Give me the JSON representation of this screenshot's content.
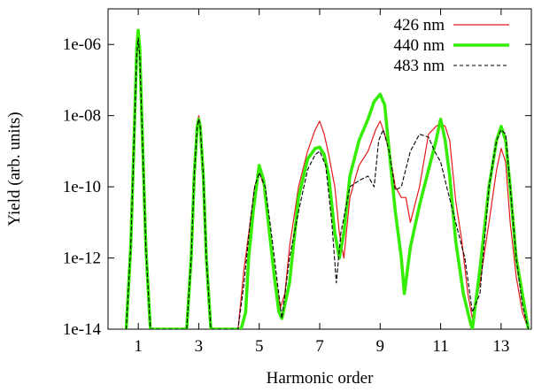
{
  "chart_data": {
    "type": "line",
    "title": "",
    "xlabel": "Harmonic order",
    "ylabel": "Yield (arb. units)",
    "xlim": [
      0.0,
      14.0
    ],
    "ylim": [
      1e-14,
      1e-05
    ],
    "y_scale": "log",
    "grid": false,
    "legend_position": "top-right",
    "x_ticks": [
      1,
      3,
      5,
      7,
      9,
      11,
      13
    ],
    "x_tick_labels": [
      "1",
      "3",
      "5",
      "7",
      "9",
      "11",
      "13"
    ],
    "y_ticks": [
      1e-14,
      1e-12,
      1e-10,
      1e-08,
      1e-06
    ],
    "y_tick_labels": [
      "1e-14",
      "1e-12",
      "1e-10",
      "1e-08",
      "1e-06"
    ],
    "series": [
      {
        "name": "426 nm",
        "color": "#e41a1c",
        "style": "solid-thin",
        "x": [
          0.6,
          0.75,
          0.85,
          0.95,
          1.0,
          1.05,
          1.15,
          1.25,
          1.4,
          2.6,
          2.75,
          2.85,
          2.95,
          3.0,
          3.05,
          3.15,
          3.25,
          3.4,
          4.3,
          4.5,
          4.7,
          4.85,
          5.0,
          5.15,
          5.3,
          5.5,
          5.7,
          5.85,
          6.0,
          6.3,
          6.6,
          6.85,
          7.0,
          7.15,
          7.3,
          7.5,
          7.65,
          7.8,
          8.0,
          8.3,
          8.6,
          8.85,
          9.0,
          9.15,
          9.3,
          9.5,
          9.7,
          9.85,
          10.0,
          10.3,
          10.6,
          10.85,
          11.0,
          11.15,
          11.3,
          11.5,
          11.7,
          11.9,
          12.05,
          12.3,
          12.6,
          12.85,
          13.0,
          13.15,
          13.3,
          13.5,
          13.7,
          13.9
        ],
        "y": [
          1e-14,
          2e-12,
          1e-09,
          5e-07,
          1.2e-06,
          5e-07,
          1e-09,
          2e-12,
          1e-14,
          1e-14,
          1e-12,
          2e-10,
          6e-09,
          1e-08,
          6e-09,
          2e-10,
          1e-12,
          1e-14,
          1e-14,
          5e-13,
          1e-11,
          1e-10,
          3e-10,
          1e-10,
          1e-11,
          4e-13,
          4e-14,
          1e-13,
          2e-12,
          1e-10,
          1e-09,
          4e-09,
          7e-09,
          3e-09,
          8e-10,
          1e-10,
          5e-12,
          1e-12,
          5e-11,
          4e-10,
          1e-09,
          4e-09,
          7e-09,
          3e-09,
          1e-09,
          1e-10,
          5e-11,
          5e-11,
          1e-11,
          1e-10,
          3e-09,
          5e-09,
          6e-09,
          5e-09,
          2e-09,
          4e-11,
          3e-12,
          1e-13,
          2e-14,
          2e-13,
          1e-11,
          3e-10,
          1.2e-09,
          5e-10,
          1e-11,
          3e-13,
          3e-14,
          1e-14
        ]
      },
      {
        "name": "440 nm",
        "color": "#33ee00",
        "style": "solid-thick",
        "x": [
          0.6,
          0.75,
          0.85,
          0.95,
          1.0,
          1.05,
          1.15,
          1.25,
          1.4,
          2.6,
          2.75,
          2.85,
          2.95,
          3.0,
          3.05,
          3.15,
          3.25,
          3.4,
          4.4,
          4.55,
          4.65,
          4.8,
          5.0,
          5.15,
          5.3,
          5.5,
          5.65,
          5.75,
          6.0,
          6.3,
          6.6,
          6.85,
          7.0,
          7.15,
          7.3,
          7.5,
          7.65,
          7.8,
          8.0,
          8.3,
          8.6,
          8.8,
          9.0,
          9.15,
          9.3,
          9.5,
          9.7,
          9.8,
          10.0,
          10.3,
          10.6,
          10.85,
          11.0,
          11.15,
          11.3,
          11.5,
          11.75,
          11.95,
          12.05,
          12.3,
          12.6,
          12.85,
          13.0,
          13.15,
          13.3,
          13.5,
          13.7,
          13.9
        ],
        "y": [
          1e-14,
          2e-12,
          1e-09,
          8e-07,
          2.5e-06,
          8e-07,
          1e-09,
          2e-12,
          1e-14,
          1e-14,
          1e-12,
          2e-10,
          5e-09,
          8e-09,
          5e-09,
          2e-10,
          1e-12,
          1e-14,
          1e-14,
          3e-14,
          1e-12,
          2e-11,
          4e-10,
          1.5e-10,
          1e-11,
          3e-13,
          3e-14,
          2e-14,
          2e-13,
          5e-11,
          6e-10,
          1.2e-09,
          1.3e-09,
          8e-10,
          2e-10,
          5e-12,
          1e-12,
          5e-12,
          2e-10,
          2e-09,
          8e-09,
          2.5e-08,
          4e-08,
          2e-08,
          1e-09,
          2e-11,
          1e-12,
          1e-13,
          2e-12,
          3e-11,
          3e-10,
          2e-09,
          8e-09,
          2e-09,
          2e-10,
          3e-12,
          1e-13,
          2e-14,
          1e-14,
          5e-13,
          1e-10,
          2e-09,
          5e-09,
          2e-09,
          1e-10,
          1e-12,
          1e-13,
          1e-14
        ]
      },
      {
        "name": "483 nm",
        "color": "#000000",
        "style": "dashed",
        "x": [
          0.6,
          0.75,
          0.85,
          0.95,
          1.0,
          1.05,
          1.15,
          1.25,
          1.4,
          2.6,
          2.75,
          2.85,
          2.95,
          3.0,
          3.05,
          3.15,
          3.25,
          3.4,
          4.3,
          4.5,
          4.7,
          4.85,
          5.0,
          5.2,
          5.4,
          5.6,
          5.75,
          6.0,
          6.3,
          6.6,
          6.85,
          7.0,
          7.2,
          7.4,
          7.55,
          7.7,
          8.0,
          8.3,
          8.6,
          8.8,
          8.95,
          9.1,
          9.3,
          9.5,
          9.7,
          10.0,
          10.3,
          10.6,
          10.8,
          11.0,
          11.2,
          11.5,
          11.8,
          12.05,
          12.3,
          12.6,
          12.85,
          13.0,
          13.15,
          13.3,
          13.5,
          13.7,
          13.9
        ],
        "y": [
          1e-14,
          2e-12,
          1e-09,
          5e-07,
          1.5e-06,
          5e-07,
          1e-09,
          2e-12,
          1e-14,
          1e-14,
          1e-12,
          2e-10,
          5e-09,
          8e-09,
          5e-09,
          2e-10,
          1e-12,
          1e-14,
          1e-14,
          2e-13,
          1e-11,
          1e-10,
          2.5e-10,
          1e-10,
          5e-12,
          2e-13,
          2e-14,
          1e-12,
          2e-11,
          3e-10,
          8e-10,
          1e-09,
          4e-10,
          1e-11,
          2e-13,
          5e-12,
          1e-10,
          1.5e-10,
          2e-10,
          1e-10,
          2e-09,
          4e-09,
          1e-09,
          8e-11,
          1e-10,
          1e-09,
          3e-09,
          2.5e-09,
          1e-09,
          5e-10,
          1e-10,
          1e-11,
          1e-12,
          3e-14,
          1e-13,
          1e-10,
          2e-09,
          4e-09,
          3e-09,
          1e-10,
          1e-12,
          5e-14,
          1e-14
        ]
      }
    ]
  }
}
